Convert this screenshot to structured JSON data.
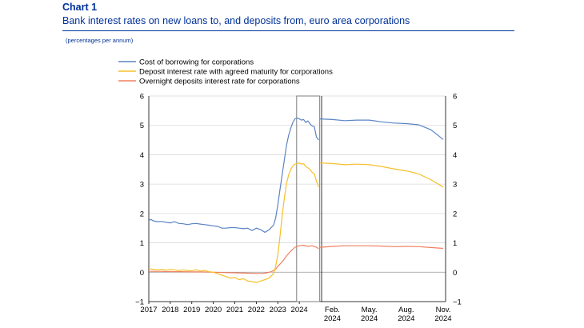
{
  "header": {
    "label": "Chart 1",
    "title": "Bank interest rates on new loans to, and deposits from, euro area corporations",
    "units": "(percentages per annum)"
  },
  "chart_data": {
    "type": "line",
    "ylim": [
      -1,
      6
    ],
    "yticks": [
      "−1",
      "0",
      "1",
      "2",
      "3",
      "4",
      "5",
      "6"
    ],
    "colors": {
      "borrowing": "#5b84c4",
      "agreed": "#f5c02a",
      "overnight": "#f08060",
      "axis": "#000000",
      "grid": "#d9d9d9",
      "highlight": "#7f7f7f"
    },
    "legend": [
      {
        "key": "borrowing",
        "name": "Cost of borrowing for corporations"
      },
      {
        "key": "agreed",
        "name": "Deposit interest rate with agreed maturity for corporations"
      },
      {
        "key": "overnight",
        "name": "Overnight deposits interest rate for corporations"
      }
    ],
    "left_panel": {
      "xlim": [
        2017,
        2025
      ],
      "x_tick_labels": [
        "2017",
        "2018",
        "2019",
        "2020",
        "2021",
        "2022",
        "2023",
        "2024"
      ],
      "highlight_range": [
        2023.95,
        2024.95
      ],
      "series": {
        "borrowing": [
          [
            2017.0,
            1.76
          ],
          [
            2017.1,
            1.8
          ],
          [
            2017.2,
            1.75
          ],
          [
            2017.4,
            1.72
          ],
          [
            2017.6,
            1.73
          ],
          [
            2017.8,
            1.7
          ],
          [
            2018.0,
            1.68
          ],
          [
            2018.2,
            1.72
          ],
          [
            2018.4,
            1.66
          ],
          [
            2018.6,
            1.65
          ],
          [
            2018.8,
            1.62
          ],
          [
            2019.0,
            1.65
          ],
          [
            2019.2,
            1.66
          ],
          [
            2019.4,
            1.64
          ],
          [
            2019.6,
            1.62
          ],
          [
            2019.8,
            1.6
          ],
          [
            2020.0,
            1.58
          ],
          [
            2020.2,
            1.56
          ],
          [
            2020.4,
            1.5
          ],
          [
            2020.6,
            1.5
          ],
          [
            2020.8,
            1.52
          ],
          [
            2021.0,
            1.52
          ],
          [
            2021.2,
            1.5
          ],
          [
            2021.4,
            1.48
          ],
          [
            2021.6,
            1.5
          ],
          [
            2021.8,
            1.42
          ],
          [
            2022.0,
            1.5
          ],
          [
            2022.2,
            1.45
          ],
          [
            2022.4,
            1.36
          ],
          [
            2022.6,
            1.45
          ],
          [
            2022.8,
            1.6
          ],
          [
            2022.9,
            1.85
          ],
          [
            2023.0,
            2.3
          ],
          [
            2023.1,
            2.8
          ],
          [
            2023.2,
            3.3
          ],
          [
            2023.3,
            3.8
          ],
          [
            2023.4,
            4.3
          ],
          [
            2023.5,
            4.65
          ],
          [
            2023.6,
            4.9
          ],
          [
            2023.7,
            5.1
          ],
          [
            2023.8,
            5.22
          ],
          [
            2023.9,
            5.25
          ],
          [
            2024.0,
            5.22
          ],
          [
            2024.1,
            5.18
          ],
          [
            2024.2,
            5.2
          ],
          [
            2024.3,
            5.1
          ],
          [
            2024.4,
            5.15
          ],
          [
            2024.5,
            5.05
          ],
          [
            2024.6,
            4.98
          ],
          [
            2024.7,
            4.95
          ],
          [
            2024.8,
            4.6
          ],
          [
            2024.9,
            4.5
          ]
        ],
        "agreed": [
          [
            2017.0,
            0.12
          ],
          [
            2017.2,
            0.1
          ],
          [
            2017.4,
            0.08
          ],
          [
            2017.6,
            0.1
          ],
          [
            2017.8,
            0.07
          ],
          [
            2018.0,
            0.09
          ],
          [
            2018.2,
            0.08
          ],
          [
            2018.4,
            0.06
          ],
          [
            2018.6,
            0.08
          ],
          [
            2018.8,
            0.06
          ],
          [
            2019.0,
            0.05
          ],
          [
            2019.2,
            0.08
          ],
          [
            2019.4,
            0.04
          ],
          [
            2019.6,
            0.06
          ],
          [
            2019.8,
            0.02
          ],
          [
            2020.0,
            0.0
          ],
          [
            2020.2,
            -0.05
          ],
          [
            2020.4,
            -0.1
          ],
          [
            2020.6,
            -0.15
          ],
          [
            2020.8,
            -0.2
          ],
          [
            2021.0,
            -0.18
          ],
          [
            2021.2,
            -0.25
          ],
          [
            2021.4,
            -0.22
          ],
          [
            2021.6,
            -0.3
          ],
          [
            2021.8,
            -0.32
          ],
          [
            2022.0,
            -0.35
          ],
          [
            2022.2,
            -0.3
          ],
          [
            2022.4,
            -0.25
          ],
          [
            2022.6,
            -0.2
          ],
          [
            2022.8,
            -0.05
          ],
          [
            2022.9,
            0.2
          ],
          [
            2023.0,
            0.6
          ],
          [
            2023.1,
            1.2
          ],
          [
            2023.2,
            1.9
          ],
          [
            2023.3,
            2.5
          ],
          [
            2023.4,
            3.0
          ],
          [
            2023.5,
            3.3
          ],
          [
            2023.6,
            3.5
          ],
          [
            2023.7,
            3.62
          ],
          [
            2023.8,
            3.68
          ],
          [
            2023.9,
            3.7
          ],
          [
            2024.0,
            3.72
          ],
          [
            2024.1,
            3.68
          ],
          [
            2024.2,
            3.7
          ],
          [
            2024.3,
            3.6
          ],
          [
            2024.4,
            3.55
          ],
          [
            2024.5,
            3.5
          ],
          [
            2024.6,
            3.4
          ],
          [
            2024.7,
            3.35
          ],
          [
            2024.8,
            3.1
          ],
          [
            2024.9,
            2.9
          ]
        ],
        "overnight": [
          [
            2017.0,
            0.03
          ],
          [
            2017.5,
            0.03
          ],
          [
            2018.0,
            0.02
          ],
          [
            2018.5,
            0.02
          ],
          [
            2019.0,
            0.01
          ],
          [
            2019.5,
            0.01
          ],
          [
            2020.0,
            0.0
          ],
          [
            2020.5,
            -0.01
          ],
          [
            2021.0,
            -0.02
          ],
          [
            2021.5,
            -0.03
          ],
          [
            2022.0,
            -0.04
          ],
          [
            2022.3,
            -0.04
          ],
          [
            2022.5,
            -0.02
          ],
          [
            2022.7,
            0.02
          ],
          [
            2022.9,
            0.1
          ],
          [
            2023.0,
            0.2
          ],
          [
            2023.2,
            0.35
          ],
          [
            2023.4,
            0.55
          ],
          [
            2023.6,
            0.72
          ],
          [
            2023.8,
            0.85
          ],
          [
            2024.0,
            0.9
          ],
          [
            2024.2,
            0.92
          ],
          [
            2024.4,
            0.88
          ],
          [
            2024.6,
            0.9
          ],
          [
            2024.8,
            0.85
          ],
          [
            2024.9,
            0.8
          ]
        ]
      }
    },
    "right_panel": {
      "xlim": [
        0,
        10
      ],
      "x_tick_labels": [
        {
          "x": 1,
          "line1": "Feb.",
          "line2": "2024"
        },
        {
          "x": 4,
          "line1": "May.",
          "line2": "2024"
        },
        {
          "x": 7,
          "line1": "Aug.",
          "line2": "2024"
        },
        {
          "x": 10,
          "line1": "Nov.",
          "line2": "2024"
        }
      ],
      "series": {
        "borrowing": [
          [
            0,
            5.22
          ],
          [
            1,
            5.2
          ],
          [
            2,
            5.16
          ],
          [
            3,
            5.18
          ],
          [
            4,
            5.18
          ],
          [
            5,
            5.12
          ],
          [
            6,
            5.08
          ],
          [
            7,
            5.06
          ],
          [
            8,
            5.02
          ],
          [
            9,
            4.85
          ],
          [
            10,
            4.52
          ]
        ],
        "agreed": [
          [
            0,
            3.72
          ],
          [
            1,
            3.7
          ],
          [
            2,
            3.66
          ],
          [
            3,
            3.68
          ],
          [
            4,
            3.66
          ],
          [
            5,
            3.6
          ],
          [
            6,
            3.52
          ],
          [
            7,
            3.45
          ],
          [
            8,
            3.35
          ],
          [
            9,
            3.15
          ],
          [
            10,
            2.9
          ]
        ],
        "overnight": [
          [
            0,
            0.85
          ],
          [
            1,
            0.88
          ],
          [
            2,
            0.9
          ],
          [
            3,
            0.9
          ],
          [
            4,
            0.9
          ],
          [
            5,
            0.89
          ],
          [
            6,
            0.87
          ],
          [
            7,
            0.88
          ],
          [
            8,
            0.87
          ],
          [
            9,
            0.84
          ],
          [
            10,
            0.81
          ]
        ]
      }
    }
  }
}
